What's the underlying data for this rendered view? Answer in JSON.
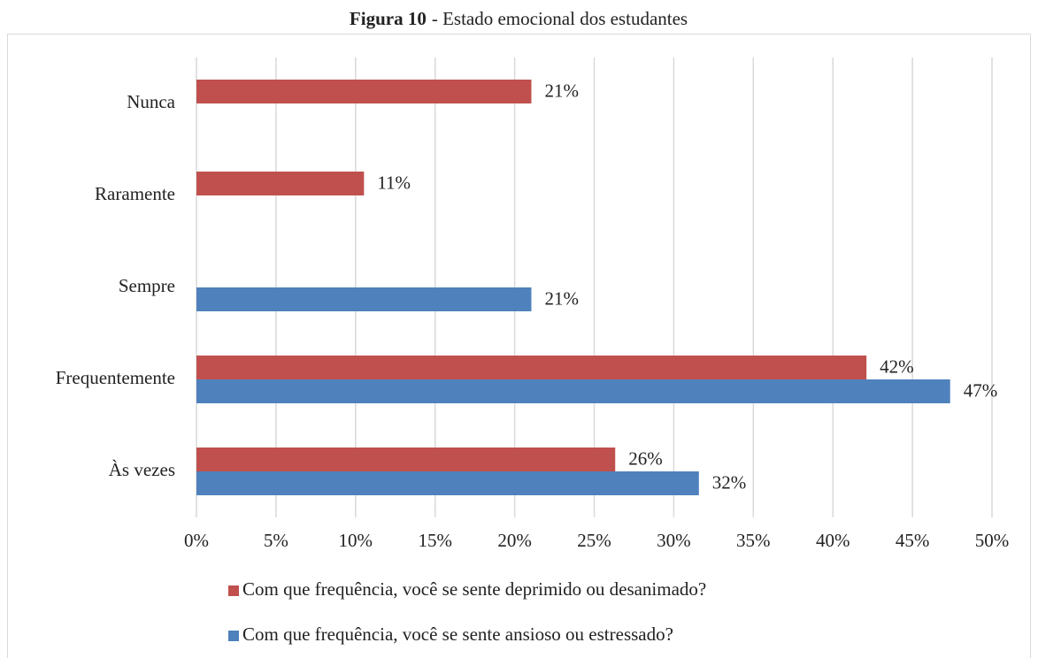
{
  "chart_data": {
    "type": "hbar",
    "figure_label": "Figura 10",
    "title": "- Estado emocional dos estudantes",
    "categories": [
      "Nunca",
      "Raramente",
      "Sempre",
      "Frequentemente",
      "Às vezes"
    ],
    "series": [
      {
        "name": "Com que frequência, você se sente deprimido ou desanimado?",
        "color": "#c0504d",
        "values": [
          21.05,
          10.53,
          null,
          42.11,
          26.32
        ],
        "value_labels": [
          "21%",
          "11%",
          null,
          "42%",
          "26%"
        ]
      },
      {
        "name": "Com que frequência, você se sente ansioso ou estressado?",
        "color": "#4f81bd",
        "values": [
          null,
          null,
          21.05,
          47.37,
          31.58
        ],
        "value_labels": [
          null,
          null,
          "21%",
          "47%",
          "32%"
        ]
      }
    ],
    "xlim": [
      0,
      50
    ],
    "xticks": [
      {
        "value": 0,
        "label": "0%"
      },
      {
        "value": 5,
        "label": "5%"
      },
      {
        "value": 10,
        "label": "10%"
      },
      {
        "value": 15,
        "label": "15%"
      },
      {
        "value": 20,
        "label": "20%"
      },
      {
        "value": 25,
        "label": "25%"
      },
      {
        "value": 30,
        "label": "30%"
      },
      {
        "value": 35,
        "label": "35%"
      },
      {
        "value": 40,
        "label": "40%"
      },
      {
        "value": 45,
        "label": "45%"
      },
      {
        "value": 50,
        "label": "50%"
      }
    ],
    "grid": true,
    "legend": "bottom"
  }
}
